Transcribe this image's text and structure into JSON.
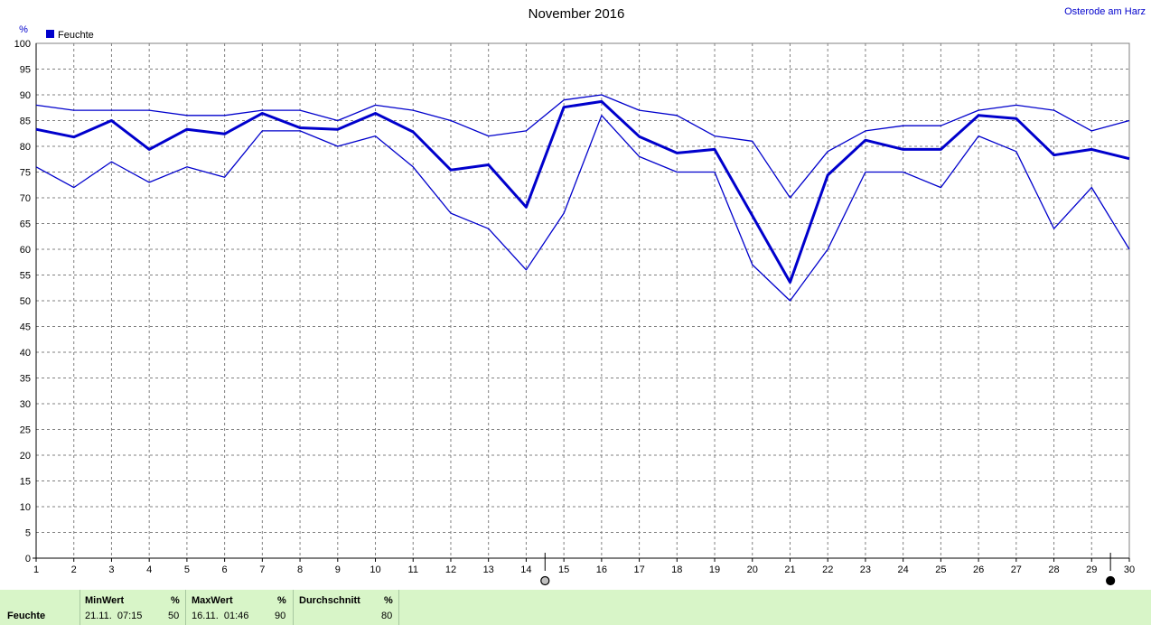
{
  "location": "Osterode am Harz",
  "chart_data": {
    "type": "line",
    "title": "November 2016",
    "ylabel": "%",
    "ylim": [
      0,
      100
    ],
    "ytick_step": 5,
    "xlim": [
      1,
      30
    ],
    "x": [
      1,
      2,
      3,
      4,
      5,
      6,
      7,
      8,
      9,
      10,
      11,
      12,
      13,
      14,
      15,
      16,
      17,
      18,
      19,
      20,
      21,
      22,
      23,
      24,
      25,
      26,
      27,
      28,
      29,
      30
    ],
    "grid": true,
    "legend": {
      "placement": "top-left",
      "entries": [
        "Feuchte"
      ]
    },
    "series": [
      {
        "name": "Feuchte",
        "role": "max",
        "color": "#0000cc",
        "width": 1.3,
        "values": [
          88,
          87,
          87,
          87,
          86,
          86,
          87,
          87,
          85,
          88,
          87,
          85,
          82,
          83,
          89,
          90,
          87,
          86,
          82,
          81,
          70,
          79,
          83,
          84,
          84,
          87,
          88,
          87,
          83,
          85
        ]
      },
      {
        "name": "Feuchte",
        "role": "avg",
        "color": "#0000cc",
        "width": 3,
        "values": [
          83.3,
          81.8,
          85,
          79.4,
          83.3,
          82.4,
          86.4,
          83.6,
          83.3,
          86.4,
          82.8,
          75.4,
          76.4,
          68.2,
          87.6,
          88.7,
          81.9,
          78.7,
          79.4,
          66.5,
          53.6,
          74.4,
          81.2,
          79.4,
          79.4,
          86,
          85.4,
          78.3,
          79.4,
          77.6
        ]
      },
      {
        "name": "Feuchte",
        "role": "min",
        "color": "#0000cc",
        "width": 1.3,
        "values": [
          76,
          72,
          77,
          73,
          76,
          74,
          83,
          83,
          80,
          82,
          76,
          67,
          64,
          56,
          67,
          86,
          78,
          75,
          75,
          57,
          50,
          60,
          75,
          75,
          72,
          82,
          79,
          64,
          72,
          60
        ]
      }
    ],
    "moon_markers": [
      {
        "x": 14.5,
        "phase": "full-moon"
      },
      {
        "x": 29.5,
        "phase": "new-moon"
      }
    ]
  },
  "stats": {
    "row_label": "Feuchte",
    "min": {
      "label": "MinWert",
      "unit": "%",
      "datetime": "21.11.  07:15",
      "value": "50"
    },
    "max": {
      "label": "MaxWert",
      "unit": "%",
      "datetime": "16.11.  01:46",
      "value": "90"
    },
    "avg": {
      "label": "Durchschnitt",
      "unit": "%",
      "value": "80"
    }
  }
}
